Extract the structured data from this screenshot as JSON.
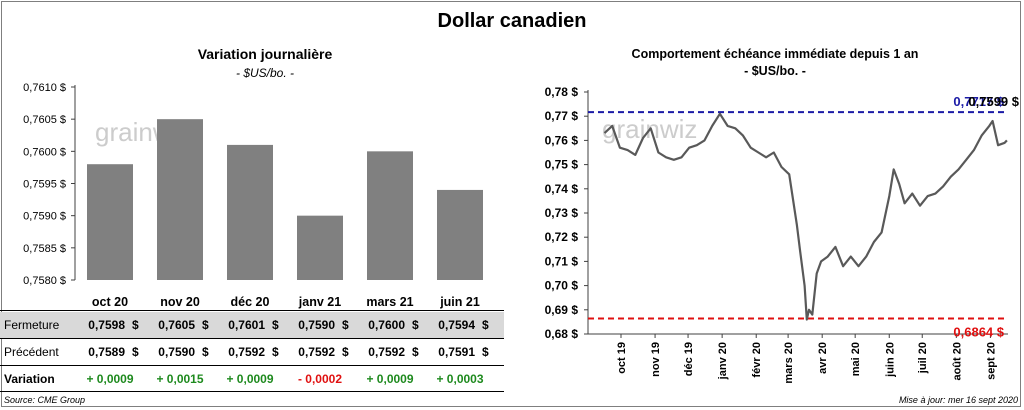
{
  "title": "Dollar canadien",
  "watermark": "grainwiz",
  "left_chart": {
    "title": "Variation  journalière",
    "subtitle": "- $US/bo. -",
    "y_ticks": [
      "0,7610 $",
      "0,7605 $",
      "0,7600 $",
      "0,7595 $",
      "0,7590 $",
      "0,7585 $",
      "0,7580 $"
    ],
    "categories": [
      "oct 20",
      "nov 20",
      "déc 20",
      "janv 21",
      "mars 21",
      "juin 21"
    ]
  },
  "table": {
    "rows": [
      {
        "label": "Fermeture",
        "values": [
          "0,7598",
          "0,7605",
          "0,7601",
          "0,7590",
          "0,7600",
          "0,7594"
        ],
        "currency": "$"
      },
      {
        "label": "Précédent",
        "values": [
          "0,7589",
          "0,7590",
          "0,7592",
          "0,7592",
          "0,7592",
          "0,7591"
        ],
        "currency": "$"
      },
      {
        "label": "Variation",
        "values": [
          "+ 0,0009",
          "+ 0,0015",
          "+ 0,0009",
          "- 0,0002",
          "+ 0,0009",
          "+ 0,0003"
        ]
      }
    ]
  },
  "right_chart": {
    "title": "Comportement échéance immédiate depuis 1 an",
    "subtitle": "- $US/bo. -",
    "y_ticks": [
      "0,78 $",
      "0,77 $",
      "0,76 $",
      "0,75 $",
      "0,74 $",
      "0,73 $",
      "0,72 $",
      "0,71 $",
      "0,70 $",
      "0,69 $",
      "0,68 $"
    ],
    "x_ticks": [
      "oct 19",
      "nov 19",
      "déc 19",
      "janv 20",
      "févr 20",
      "mars 20",
      "avr 20",
      "mai 20",
      "juin 20",
      "juil 20",
      "août 20",
      "sept 20"
    ],
    "high_label": "0,7717 $",
    "last_label": "0,7599 $",
    "low_label": "0,6864 $"
  },
  "footer": {
    "source": "Source: CME Group",
    "updated": "Mise à jour: mer 16 sept 2020"
  },
  "colors": {
    "bar": "#808080",
    "line": "#595959",
    "high_line": "#1a1aa6",
    "low_line": "#e01010",
    "positive": "#1e8a1e",
    "negative": "#e01010",
    "table_band": "#d9d9d9"
  },
  "chart_data": [
    {
      "type": "bar",
      "title": "Variation  journalière",
      "subtitle": "- $US/bo. -",
      "categories": [
        "oct 20",
        "nov 20",
        "déc 20",
        "janv 21",
        "mars 21",
        "juin 21"
      ],
      "values": [
        0.7598,
        0.7605,
        0.7601,
        0.759,
        0.76,
        0.7594
      ],
      "ylim": [
        0.758,
        0.761
      ],
      "grid": false
    },
    {
      "type": "line",
      "title": "Comportement échéance immédiate depuis 1 an",
      "subtitle": "- $US/bo. -",
      "ylim": [
        0.68,
        0.78
      ],
      "grid": false,
      "x": [
        "2019-09-16",
        "2019-09-23",
        "2019-09-30",
        "2019-10-07",
        "2019-10-14",
        "2019-10-21",
        "2019-10-28",
        "2019-11-04",
        "2019-11-11",
        "2019-11-18",
        "2019-11-25",
        "2019-12-02",
        "2019-12-09",
        "2019-12-16",
        "2019-12-23",
        "2019-12-30",
        "2020-01-06",
        "2020-01-13",
        "2020-01-20",
        "2020-01-27",
        "2020-02-03",
        "2020-02-10",
        "2020-02-17",
        "2020-02-24",
        "2020-03-02",
        "2020-03-09",
        "2020-03-12",
        "2020-03-16",
        "2020-03-18",
        "2020-03-20",
        "2020-03-23",
        "2020-03-27",
        "2020-03-31",
        "2020-04-06",
        "2020-04-13",
        "2020-04-20",
        "2020-04-27",
        "2020-05-04",
        "2020-05-11",
        "2020-05-18",
        "2020-05-25",
        "2020-06-01",
        "2020-06-05",
        "2020-06-10",
        "2020-06-15",
        "2020-06-22",
        "2020-06-29",
        "2020-07-06",
        "2020-07-13",
        "2020-07-20",
        "2020-07-27",
        "2020-08-03",
        "2020-08-10",
        "2020-08-17",
        "2020-08-24",
        "2020-08-31",
        "2020-09-03",
        "2020-09-08",
        "2020-09-14",
        "2020-09-16"
      ],
      "series": [
        {
          "values": [
            0.763,
            0.766,
            0.757,
            0.756,
            0.754,
            0.761,
            0.765,
            0.755,
            0.753,
            0.752,
            0.753,
            0.757,
            0.758,
            0.76,
            0.766,
            0.771,
            0.766,
            0.765,
            0.762,
            0.757,
            0.755,
            0.753,
            0.755,
            0.749,
            0.746,
            0.725,
            0.714,
            0.7,
            0.686,
            0.69,
            0.688,
            0.705,
            0.71,
            0.712,
            0.716,
            0.708,
            0.712,
            0.708,
            0.712,
            0.718,
            0.722,
            0.737,
            0.748,
            0.742,
            0.734,
            0.738,
            0.733,
            0.737,
            0.738,
            0.741,
            0.745,
            0.748,
            0.752,
            0.756,
            0.762,
            0.766,
            0.768,
            0.758,
            0.759,
            0.76
          ]
        }
      ],
      "annotations": [
        {
          "label": "0,7717 $",
          "value": 0.7717,
          "style": "dashed",
          "color": "#1a1aa6"
        },
        {
          "label": "0,6864 $",
          "value": 0.6864,
          "style": "dashed",
          "color": "#e01010"
        },
        {
          "label": "0,7599 $",
          "value": 0.7599
        }
      ]
    }
  ]
}
